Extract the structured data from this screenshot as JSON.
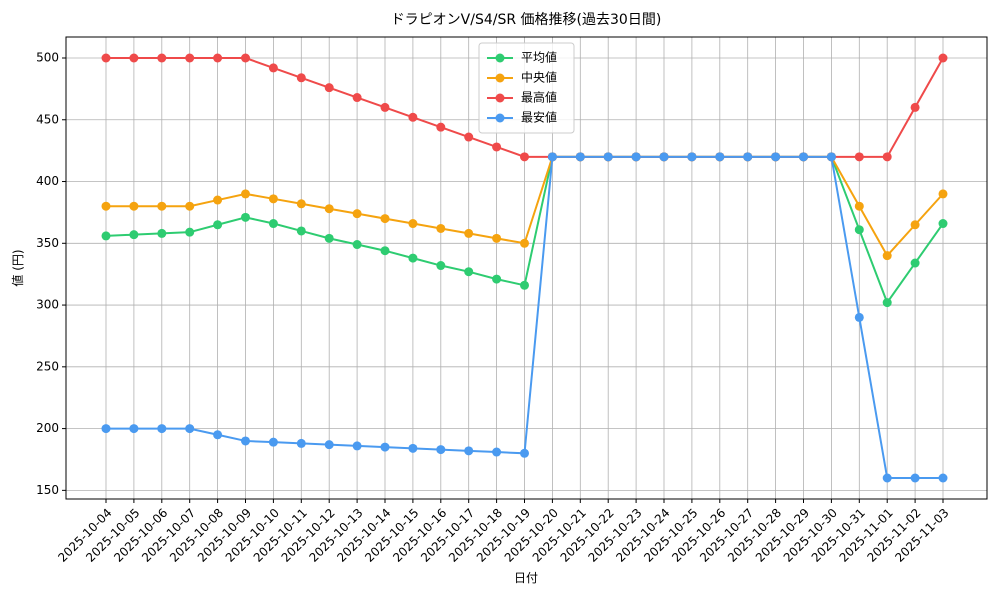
{
  "chart_data": {
    "type": "line",
    "title": "ドラピオンV/S4/SR 価格推移(過去30日間)",
    "x_label": "日付",
    "y_label": "値 (円)",
    "categories": [
      "2025-10-04",
      "2025-10-05",
      "2025-10-06",
      "2025-10-07",
      "2025-10-08",
      "2025-10-09",
      "2025-10-10",
      "2025-10-11",
      "2025-10-12",
      "2025-10-13",
      "2025-10-14",
      "2025-10-15",
      "2025-10-16",
      "2025-10-17",
      "2025-10-18",
      "2025-10-19",
      "2025-10-20",
      "2025-10-21",
      "2025-10-22",
      "2025-10-23",
      "2025-10-24",
      "2025-10-25",
      "2025-10-26",
      "2025-10-27",
      "2025-10-28",
      "2025-10-29",
      "2025-10-30",
      "2025-10-31",
      "2025-11-01",
      "2025-11-02",
      "2025-11-03"
    ],
    "series": [
      {
        "name": "平均値",
        "color": "#2ecc71",
        "values": [
          356,
          357,
          358,
          359,
          365,
          371,
          366,
          360,
          354,
          349,
          344,
          338,
          332,
          327,
          321,
          316,
          420,
          420,
          420,
          420,
          420,
          420,
          420,
          420,
          420,
          420,
          420,
          361,
          302,
          334,
          366
        ]
      },
      {
        "name": "中央値",
        "color": "#f5a30f",
        "values": [
          380,
          380,
          380,
          380,
          385,
          390,
          386,
          382,
          378,
          374,
          370,
          366,
          362,
          358,
          354,
          350,
          420,
          420,
          420,
          420,
          420,
          420,
          420,
          420,
          420,
          420,
          420,
          380,
          340,
          365,
          390
        ]
      },
      {
        "name": "最高値",
        "color": "#ef4a4a",
        "values": [
          500,
          500,
          500,
          500,
          500,
          500,
          492,
          484,
          476,
          468,
          460,
          452,
          444,
          436,
          428,
          420,
          420,
          420,
          420,
          420,
          420,
          420,
          420,
          420,
          420,
          420,
          420,
          420,
          420,
          460,
          500
        ]
      },
      {
        "name": "最安値",
        "color": "#4a9af0",
        "values": [
          200,
          200,
          200,
          200,
          195,
          190,
          189,
          188,
          187,
          186,
          185,
          184,
          183,
          182,
          181,
          180,
          420,
          420,
          420,
          420,
          420,
          420,
          420,
          420,
          420,
          420,
          420,
          290,
          160,
          160,
          160
        ]
      }
    ],
    "ylim": [
      143,
      517
    ],
    "yticks": [
      150,
      200,
      250,
      300,
      350,
      400,
      450,
      500
    ],
    "grid": true,
    "legend": "upper-center"
  }
}
